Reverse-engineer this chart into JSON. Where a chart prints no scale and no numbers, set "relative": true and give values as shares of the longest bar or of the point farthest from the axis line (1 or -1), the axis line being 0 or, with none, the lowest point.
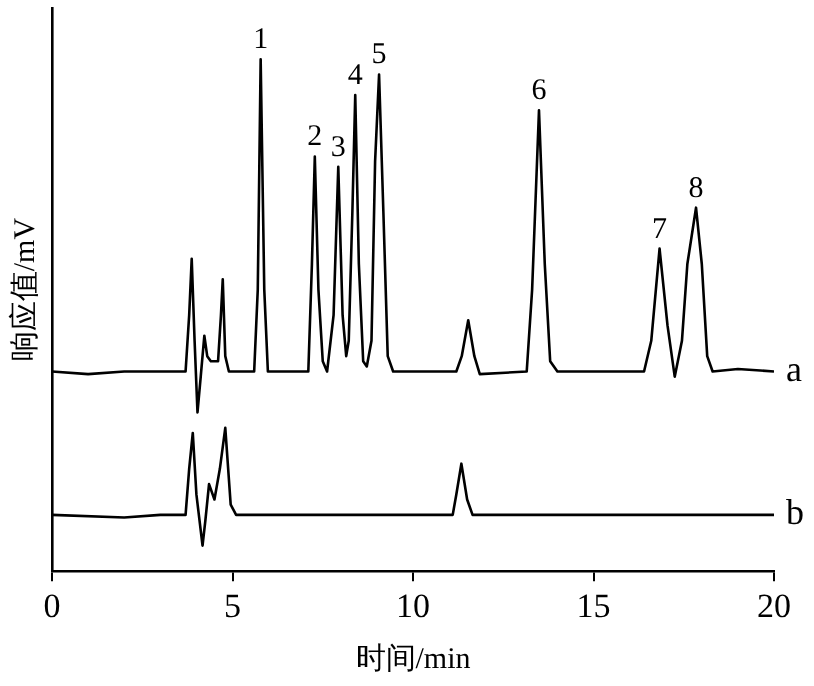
{
  "chart_data": {
    "type": "line",
    "relative": true,
    "xlabel": "时间/min",
    "ylabel": "响应值/mV",
    "xlim": [
      0,
      20
    ],
    "xticks": [
      0,
      5,
      10,
      15,
      20
    ],
    "grid": false,
    "legend": false,
    "marker": "none",
    "line_style": "solid",
    "series": [
      {
        "name": "a",
        "color": "#000000",
        "x": [
          0,
          1,
          2,
          3,
          3.7,
          3.8,
          3.87,
          3.95,
          4.03,
          4.12,
          4.22,
          4.3,
          4.4,
          4.6,
          4.68,
          4.73,
          4.8,
          4.9,
          5.6,
          5.7,
          5.78,
          5.88,
          5.98,
          7.1,
          7.2,
          7.28,
          7.38,
          7.5,
          7.62,
          7.8,
          7.93,
          8.05,
          8.15,
          8.22,
          8.32,
          8.4,
          8.5,
          8.62,
          8.72,
          8.85,
          8.95,
          9.06,
          9.18,
          9.3,
          9.45,
          11.2,
          11.35,
          11.53,
          11.7,
          11.85,
          13.15,
          13.3,
          13.49,
          13.65,
          13.8,
          14,
          16.4,
          16.6,
          16.83,
          17.05,
          17.25,
          17.45,
          17.6,
          17.84,
          18,
          18.15,
          18.3,
          19,
          20
        ],
        "values": [
          0.39,
          0.385,
          0.39,
          0.39,
          0.39,
          0.5,
          0.61,
          0.45,
          0.31,
          0.38,
          0.46,
          0.42,
          0.41,
          0.41,
          0.5,
          0.57,
          0.42,
          0.39,
          0.39,
          0.55,
          1.0,
          0.55,
          0.39,
          0.39,
          0.6,
          0.81,
          0.55,
          0.41,
          0.39,
          0.5,
          0.79,
          0.5,
          0.42,
          0.45,
          0.7,
          0.93,
          0.6,
          0.41,
          0.4,
          0.45,
          0.8,
          0.97,
          0.7,
          0.42,
          0.39,
          0.39,
          0.42,
          0.49,
          0.42,
          0.385,
          0.39,
          0.55,
          0.9,
          0.6,
          0.41,
          0.39,
          0.39,
          0.45,
          0.63,
          0.48,
          0.38,
          0.45,
          0.6,
          0.71,
          0.6,
          0.42,
          0.39,
          0.395,
          0.39
        ]
      },
      {
        "name": "b",
        "color": "#000000",
        "x": [
          0,
          2,
          3,
          3.7,
          3.8,
          3.9,
          4,
          4.17,
          4.25,
          4.35,
          4.5,
          4.65,
          4.8,
          4.95,
          5.1,
          11.1,
          11.2,
          11.34,
          11.5,
          11.65,
          20
        ],
        "values": [
          0.11,
          0.105,
          0.11,
          0.11,
          0.2,
          0.27,
          0.15,
          0.05,
          0.1,
          0.17,
          0.14,
          0.2,
          0.28,
          0.13,
          0.11,
          0.11,
          0.15,
          0.21,
          0.14,
          0.11,
          0.11
        ]
      }
    ],
    "annotations": [
      {
        "text": "1",
        "x": 5.78,
        "y": 1.0
      },
      {
        "text": "2",
        "x": 7.28,
        "y": 0.81
      },
      {
        "text": "3",
        "x": 7.93,
        "y": 0.79
      },
      {
        "text": "4",
        "x": 8.4,
        "y": 0.93
      },
      {
        "text": "5",
        "x": 9.06,
        "y": 0.97
      },
      {
        "text": "6",
        "x": 13.49,
        "y": 0.9
      },
      {
        "text": "7",
        "x": 16.83,
        "y": 0.63
      },
      {
        "text": "8",
        "x": 17.84,
        "y": 0.71
      }
    ]
  }
}
